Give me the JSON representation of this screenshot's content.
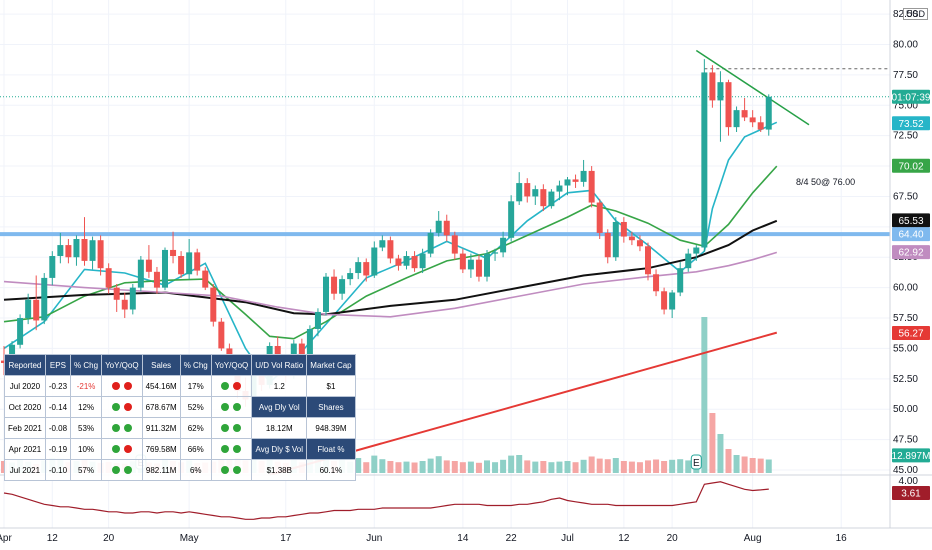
{
  "chart_data": {
    "type": "candlestick",
    "currency": "USD",
    "x_ticks": [
      "Apr",
      "12",
      "20",
      "May",
      "17",
      "Jun",
      "14",
      "22",
      "Jul",
      "12",
      "20",
      "Aug",
      "16"
    ],
    "y_ticks": [
      "82.50",
      "80.00",
      "77.50",
      "75.00",
      "72.50",
      "70.00",
      "67.50",
      "65.00",
      "62.50",
      "60.00",
      "57.50",
      "55.00",
      "52.50",
      "50.00",
      "47.50",
      "45.00"
    ],
    "price_range": [
      45,
      83
    ],
    "candles": [
      {
        "o": 54.0,
        "h": 55.2,
        "l": 52.8,
        "c": 53.8
      },
      {
        "o": 53.8,
        "h": 55.6,
        "l": 53.2,
        "c": 55.3
      },
      {
        "o": 55.3,
        "h": 57.8,
        "l": 55.0,
        "c": 57.5
      },
      {
        "o": 57.5,
        "h": 59.5,
        "l": 57.0,
        "c": 59.0
      },
      {
        "o": 59.0,
        "h": 61.0,
        "l": 56.5,
        "c": 57.3
      },
      {
        "o": 57.3,
        "h": 61.2,
        "l": 57.0,
        "c": 60.8
      },
      {
        "o": 60.8,
        "h": 63.0,
        "l": 60.2,
        "c": 62.6
      },
      {
        "o": 62.6,
        "h": 64.5,
        "l": 62.0,
        "c": 63.5
      },
      {
        "o": 63.5,
        "h": 64.0,
        "l": 62.0,
        "c": 62.5
      },
      {
        "o": 62.5,
        "h": 64.3,
        "l": 61.8,
        "c": 64.0
      },
      {
        "o": 64.0,
        "h": 65.8,
        "l": 61.8,
        "c": 62.2
      },
      {
        "o": 62.2,
        "h": 64.2,
        "l": 61.5,
        "c": 63.9
      },
      {
        "o": 63.9,
        "h": 64.3,
        "l": 61.0,
        "c": 61.6
      },
      {
        "o": 61.6,
        "h": 62.0,
        "l": 59.5,
        "c": 60.0
      },
      {
        "o": 60.0,
        "h": 60.3,
        "l": 58.0,
        "c": 59.0
      },
      {
        "o": 59.0,
        "h": 59.6,
        "l": 57.5,
        "c": 58.2
      },
      {
        "o": 58.2,
        "h": 60.3,
        "l": 57.8,
        "c": 60.0
      },
      {
        "o": 60.0,
        "h": 62.6,
        "l": 59.7,
        "c": 62.3
      },
      {
        "o": 62.3,
        "h": 63.5,
        "l": 60.8,
        "c": 61.3
      },
      {
        "o": 61.3,
        "h": 61.7,
        "l": 59.5,
        "c": 60.0
      },
      {
        "o": 60.0,
        "h": 63.3,
        "l": 59.8,
        "c": 63.1
      },
      {
        "o": 63.1,
        "h": 64.6,
        "l": 62.0,
        "c": 62.6
      },
      {
        "o": 62.6,
        "h": 63.0,
        "l": 60.8,
        "c": 61.1
      },
      {
        "o": 61.1,
        "h": 64.0,
        "l": 60.7,
        "c": 62.9
      },
      {
        "o": 62.9,
        "h": 63.2,
        "l": 61.0,
        "c": 61.4
      },
      {
        "o": 61.4,
        "h": 61.7,
        "l": 59.8,
        "c": 60.0
      },
      {
        "o": 60.0,
        "h": 60.3,
        "l": 56.8,
        "c": 57.2
      },
      {
        "o": 57.2,
        "h": 57.5,
        "l": 54.8,
        "c": 55.0
      },
      {
        "o": 55.0,
        "h": 55.4,
        "l": 52.8,
        "c": 53.2
      },
      {
        "o": 53.2,
        "h": 53.6,
        "l": 50.9,
        "c": 51.5
      },
      {
        "o": 51.5,
        "h": 52.6,
        "l": 50.2,
        "c": 50.8
      },
      {
        "o": 50.8,
        "h": 53.5,
        "l": 50.4,
        "c": 53.1
      },
      {
        "o": 53.1,
        "h": 53.9,
        "l": 51.5,
        "c": 52.0
      },
      {
        "o": 52.0,
        "h": 55.5,
        "l": 51.7,
        "c": 55.2
      },
      {
        "o": 55.2,
        "h": 56.0,
        "l": 53.0,
        "c": 53.5
      },
      {
        "o": 53.5,
        "h": 54.0,
        "l": 52.2,
        "c": 52.8
      },
      {
        "o": 52.8,
        "h": 55.7,
        "l": 52.5,
        "c": 55.4
      },
      {
        "o": 55.4,
        "h": 55.8,
        "l": 53.3,
        "c": 53.6
      },
      {
        "o": 53.6,
        "h": 56.9,
        "l": 53.2,
        "c": 56.6
      },
      {
        "o": 56.6,
        "h": 58.3,
        "l": 56.0,
        "c": 58.0
      },
      {
        "o": 58.0,
        "h": 61.2,
        "l": 57.7,
        "c": 60.9
      },
      {
        "o": 60.9,
        "h": 61.5,
        "l": 59.0,
        "c": 59.5
      },
      {
        "o": 59.5,
        "h": 61.0,
        "l": 59.0,
        "c": 60.7
      },
      {
        "o": 60.7,
        "h": 61.6,
        "l": 60.2,
        "c": 61.2
      },
      {
        "o": 61.2,
        "h": 62.5,
        "l": 60.7,
        "c": 62.1
      },
      {
        "o": 62.1,
        "h": 62.4,
        "l": 60.5,
        "c": 61.0
      },
      {
        "o": 61.0,
        "h": 63.8,
        "l": 60.8,
        "c": 63.3
      },
      {
        "o": 63.3,
        "h": 64.3,
        "l": 63.0,
        "c": 63.9
      },
      {
        "o": 63.9,
        "h": 64.2,
        "l": 62.0,
        "c": 62.4
      },
      {
        "o": 62.4,
        "h": 62.7,
        "l": 61.4,
        "c": 61.8
      },
      {
        "o": 61.8,
        "h": 63.0,
        "l": 61.5,
        "c": 62.6
      },
      {
        "o": 62.6,
        "h": 63.0,
        "l": 61.3,
        "c": 61.6
      },
      {
        "o": 61.6,
        "h": 63.2,
        "l": 61.2,
        "c": 62.8
      },
      {
        "o": 62.8,
        "h": 64.8,
        "l": 62.5,
        "c": 64.5
      },
      {
        "o": 64.5,
        "h": 66.3,
        "l": 64.2,
        "c": 65.5
      },
      {
        "o": 65.5,
        "h": 66.0,
        "l": 63.8,
        "c": 64.3
      },
      {
        "o": 64.3,
        "h": 64.6,
        "l": 62.3,
        "c": 62.8
      },
      {
        "o": 62.8,
        "h": 63.2,
        "l": 61.2,
        "c": 61.5
      },
      {
        "o": 61.5,
        "h": 62.8,
        "l": 60.8,
        "c": 62.3
      },
      {
        "o": 62.3,
        "h": 62.7,
        "l": 60.5,
        "c": 60.9
      },
      {
        "o": 60.9,
        "h": 63.1,
        "l": 60.5,
        "c": 62.8
      },
      {
        "o": 62.8,
        "h": 63.2,
        "l": 62.2,
        "c": 62.9
      },
      {
        "o": 62.9,
        "h": 64.6,
        "l": 62.5,
        "c": 64.1
      },
      {
        "o": 64.1,
        "h": 67.6,
        "l": 63.8,
        "c": 67.1
      },
      {
        "o": 67.1,
        "h": 69.5,
        "l": 66.8,
        "c": 68.6
      },
      {
        "o": 68.6,
        "h": 69.0,
        "l": 67.0,
        "c": 67.5
      },
      {
        "o": 67.5,
        "h": 68.4,
        "l": 66.8,
        "c": 68.1
      },
      {
        "o": 68.1,
        "h": 68.5,
        "l": 66.3,
        "c": 66.7
      },
      {
        "o": 66.7,
        "h": 68.1,
        "l": 66.5,
        "c": 67.9
      },
      {
        "o": 67.9,
        "h": 68.8,
        "l": 67.2,
        "c": 68.4
      },
      {
        "o": 68.4,
        "h": 69.1,
        "l": 67.6,
        "c": 68.9
      },
      {
        "o": 68.9,
        "h": 69.3,
        "l": 68.2,
        "c": 68.7
      },
      {
        "o": 68.7,
        "h": 70.5,
        "l": 68.3,
        "c": 69.6
      },
      {
        "o": 69.6,
        "h": 70.0,
        "l": 66.6,
        "c": 67.0
      },
      {
        "o": 67.0,
        "h": 67.3,
        "l": 64.0,
        "c": 64.5
      },
      {
        "o": 64.5,
        "h": 64.8,
        "l": 62.0,
        "c": 62.5
      },
      {
        "o": 62.5,
        "h": 65.8,
        "l": 62.2,
        "c": 65.4
      },
      {
        "o": 65.4,
        "h": 65.8,
        "l": 63.7,
        "c": 64.2
      },
      {
        "o": 64.2,
        "h": 64.6,
        "l": 63.5,
        "c": 63.9
      },
      {
        "o": 63.9,
        "h": 64.3,
        "l": 63.0,
        "c": 63.4
      },
      {
        "o": 63.4,
        "h": 63.7,
        "l": 60.6,
        "c": 61.1
      },
      {
        "o": 61.1,
        "h": 61.5,
        "l": 59.3,
        "c": 59.7
      },
      {
        "o": 59.7,
        "h": 60.0,
        "l": 57.8,
        "c": 58.2
      },
      {
        "o": 58.2,
        "h": 59.8,
        "l": 57.5,
        "c": 59.6
      },
      {
        "o": 59.6,
        "h": 62.1,
        "l": 59.3,
        "c": 61.6
      },
      {
        "o": 61.6,
        "h": 63.2,
        "l": 61.3,
        "c": 62.8
      },
      {
        "o": 62.8,
        "h": 63.5,
        "l": 62.2,
        "c": 63.3
      },
      {
        "o": 63.3,
        "h": 78.8,
        "l": 63.0,
        "c": 77.7
      },
      {
        "o": 77.7,
        "h": 78.3,
        "l": 74.8,
        "c": 75.4
      },
      {
        "o": 75.4,
        "h": 77.8,
        "l": 72.0,
        "c": 76.9
      },
      {
        "o": 76.9,
        "h": 77.1,
        "l": 72.5,
        "c": 73.2
      },
      {
        "o": 73.2,
        "h": 74.9,
        "l": 72.8,
        "c": 74.6
      },
      {
        "o": 74.6,
        "h": 75.6,
        "l": 73.7,
        "c": 74.0
      },
      {
        "o": 74.0,
        "h": 74.6,
        "l": 73.2,
        "c": 73.6
      },
      {
        "o": 73.6,
        "h": 74.1,
        "l": 72.8,
        "c": 73.0
      },
      {
        "o": 73.0,
        "h": 75.9,
        "l": 72.5,
        "c": 75.7
      }
    ],
    "volume_pct": [
      40,
      35,
      45,
      38,
      30,
      42,
      50,
      48,
      36,
      40,
      44,
      38,
      34,
      37,
      33,
      31,
      39,
      46,
      35,
      32,
      48,
      40,
      36,
      42,
      33,
      35,
      38,
      44,
      46,
      50,
      42,
      45,
      40,
      52,
      38,
      34,
      45,
      36,
      48,
      55,
      60,
      40,
      43,
      38,
      50,
      36,
      58,
      46,
      40,
      36,
      38,
      35,
      40,
      48,
      56,
      42,
      40,
      36,
      38,
      34,
      42,
      36,
      44,
      58,
      60,
      42,
      38,
      40,
      36,
      38,
      40,
      36,
      44,
      55,
      48,
      46,
      50,
      40,
      38,
      36,
      42,
      45,
      40,
      44,
      46,
      42,
      40,
      520,
      200,
      130,
      80,
      60,
      55,
      50,
      48,
      45
    ],
    "volume_max": 20,
    "volume_label": "12.897M",
    "indicators": [
      {
        "color": "#26b5c8",
        "points": [
          [
            0,
            55.0
          ],
          [
            5,
            57.2
          ],
          [
            10,
            61.5
          ],
          [
            15,
            61.2
          ],
          [
            20,
            60.2
          ],
          [
            25,
            62.0
          ],
          [
            30,
            55.0
          ],
          [
            33,
            52.2
          ],
          [
            36,
            54.0
          ],
          [
            40,
            57.0
          ],
          [
            45,
            60.8
          ],
          [
            50,
            62.2
          ],
          [
            55,
            63.8
          ],
          [
            60,
            62.4
          ],
          [
            65,
            65.5
          ],
          [
            70,
            67.8
          ],
          [
            73,
            68.0
          ],
          [
            76,
            65.5
          ],
          [
            80,
            63.5
          ],
          [
            84,
            61.3
          ],
          [
            87,
            63.0
          ],
          [
            88,
            66.5
          ],
          [
            90,
            70.5
          ],
          [
            92,
            72.4
          ],
          [
            94,
            73.0
          ],
          [
            96,
            73.6
          ]
        ]
      },
      {
        "color": "#37a547",
        "points": [
          [
            0,
            57.2
          ],
          [
            5,
            57.6
          ],
          [
            10,
            59.3
          ],
          [
            15,
            60.4
          ],
          [
            20,
            60.6
          ],
          [
            25,
            60.7
          ],
          [
            30,
            57.8
          ],
          [
            33,
            56.0
          ],
          [
            36,
            55.8
          ],
          [
            40,
            57.2
          ],
          [
            45,
            59.3
          ],
          [
            50,
            60.8
          ],
          [
            55,
            62.2
          ],
          [
            60,
            62.8
          ],
          [
            65,
            64.3
          ],
          [
            70,
            65.8
          ],
          [
            73,
            66.8
          ],
          [
            76,
            66.3
          ],
          [
            80,
            65.3
          ],
          [
            84,
            63.9
          ],
          [
            87,
            63.4
          ],
          [
            90,
            65.2
          ],
          [
            93,
            67.8
          ],
          [
            96,
            70.0
          ]
        ]
      },
      {
        "color": "#111111",
        "points": [
          [
            0,
            59.0
          ],
          [
            10,
            59.4
          ],
          [
            20,
            59.6
          ],
          [
            30,
            58.8
          ],
          [
            36,
            57.9
          ],
          [
            40,
            57.8
          ],
          [
            48,
            58.5
          ],
          [
            56,
            59.0
          ],
          [
            64,
            60.0
          ],
          [
            72,
            61.0
          ],
          [
            80,
            61.6
          ],
          [
            86,
            62.5
          ],
          [
            90,
            63.5
          ],
          [
            93,
            64.7
          ],
          [
            96,
            65.5
          ]
        ]
      },
      {
        "color": "#c08cc0",
        "points": [
          [
            0,
            60.5
          ],
          [
            10,
            60.0
          ],
          [
            20,
            59.6
          ],
          [
            27,
            59.3
          ],
          [
            34,
            58.4
          ],
          [
            40,
            57.8
          ],
          [
            48,
            57.6
          ],
          [
            56,
            58.3
          ],
          [
            64,
            59.3
          ],
          [
            72,
            60.3
          ],
          [
            80,
            60.9
          ],
          [
            86,
            61.3
          ],
          [
            90,
            61.8
          ],
          [
            93,
            62.3
          ],
          [
            96,
            62.9
          ]
        ]
      }
    ],
    "levels": [
      {
        "value": 64.4,
        "color": "#7fb9ee",
        "label": "64.40"
      }
    ],
    "price_tags": [
      {
        "value": 75.7,
        "label": "01:07:39",
        "bg": "#22ab94",
        "fg": "#ffffff"
      },
      {
        "value": 73.52,
        "label": "73.52",
        "bg": "#26b5c8",
        "fg": "#ffffff"
      },
      {
        "value": 70.02,
        "label": "70.02",
        "bg": "#37a547",
        "fg": "#ffffff"
      },
      {
        "value": 65.53,
        "label": "65.53",
        "bg": "#111111",
        "fg": "#ffffff"
      },
      {
        "value": 64.4,
        "label": "64.40",
        "bg": "#7fb9ee",
        "fg": "#ffffff"
      },
      {
        "value": 62.92,
        "label": "62.92",
        "bg": "#c08cc0",
        "fg": "#ffffff"
      },
      {
        "value": 56.27,
        "label": "56.27",
        "bg": "#e53935",
        "fg": "#ffffff"
      },
      {
        "value": 46.2,
        "label": "12.897M",
        "bg": "#22ab94",
        "fg": "#ffffff"
      }
    ],
    "trendline_red": {
      "color": "#e53935",
      "from": [
        33,
        44.6
      ],
      "to": [
        96,
        56.3
      ]
    },
    "trendline_green": {
      "color": "#26a047",
      "from": [
        86,
        79.5
      ],
      "to": [
        100,
        73.4
      ]
    },
    "dashed_level": 78.0,
    "annotation": "8/4 50@ 76.00",
    "rsi": {
      "label": "3.61",
      "value_line": "4.00",
      "values": [
        3.3,
        3.2,
        3.0,
        2.8,
        2.6,
        2.4,
        2.3,
        2.2,
        2.2,
        2.1,
        2.0,
        2.0,
        1.9,
        1.8,
        1.8,
        1.7,
        1.7,
        1.8,
        1.8,
        1.7,
        1.8,
        1.8,
        1.7,
        1.8,
        1.7,
        1.6,
        1.5,
        1.4,
        1.4,
        1.3,
        1.2,
        1.2,
        1.3,
        1.3,
        1.4,
        1.4,
        1.5,
        1.6,
        1.7,
        1.7,
        1.8,
        1.9,
        1.9,
        1.9,
        2.0,
        2.0,
        2.0,
        2.1,
        2.1,
        2.1,
        2.1,
        2.1,
        2.1,
        2.1,
        2.2,
        2.3,
        2.4,
        2.4,
        2.4,
        2.4,
        2.3,
        2.3,
        2.3,
        2.3,
        2.4,
        2.4,
        2.5,
        2.6,
        2.8,
        2.9,
        2.7,
        2.6,
        2.5,
        2.4,
        2.4,
        2.4,
        2.3,
        2.3,
        2.3,
        2.3,
        2.3,
        2.3,
        2.3,
        2.3,
        2.4,
        2.5,
        2.6,
        4.0,
        4.1,
        4.2,
        4.0,
        3.8,
        3.6,
        3.5,
        3.55,
        3.61
      ]
    }
  },
  "fundamentals": {
    "headers": [
      "Reported",
      "EPS",
      "% Chg",
      "YoY/QoQ",
      "Sales",
      "% Chg",
      "YoY/QoQ",
      "U/D Vol Ratio",
      "Market Cap"
    ],
    "rows": [
      {
        "reported": "Jul 2020",
        "eps": "-0.23",
        "chg": "-21%",
        "d1": "r",
        "d2": "r",
        "sales": "454.16M",
        "schg": "17%",
        "d3": "g",
        "d4": "r",
        "k": "1.2",
        "v": "$1"
      },
      {
        "reported": "Oct 2020",
        "eps": "-0.14",
        "chg": "12%",
        "d1": "g",
        "d2": "r",
        "sales": "678.67M",
        "schg": "52%",
        "d3": "g",
        "d4": "g",
        "k": "Avg Dly Vol",
        "v": "Shares"
      },
      {
        "reported": "Feb 2021",
        "eps": "-0.08",
        "chg": "53%",
        "d1": "g",
        "d2": "g",
        "sales": "911.32M",
        "schg": "62%",
        "d3": "g",
        "d4": "g",
        "k": "18.12M",
        "v": "948.39M"
      },
      {
        "reported": "Apr 2021",
        "eps": "-0.19",
        "chg": "10%",
        "d1": "g",
        "d2": "r",
        "sales": "769.58M",
        "schg": "66%",
        "d3": "g",
        "d4": "g",
        "k": "Avg Dly $ Vol",
        "v": "Float %"
      },
      {
        "reported": "Jul 2021",
        "eps": "-0.10",
        "chg": "57%",
        "d1": "g",
        "d2": "g",
        "sales": "982.11M",
        "schg": "6%",
        "d3": "g",
        "d4": "g",
        "k": "$1.38B",
        "v": "60.1%"
      }
    ]
  }
}
